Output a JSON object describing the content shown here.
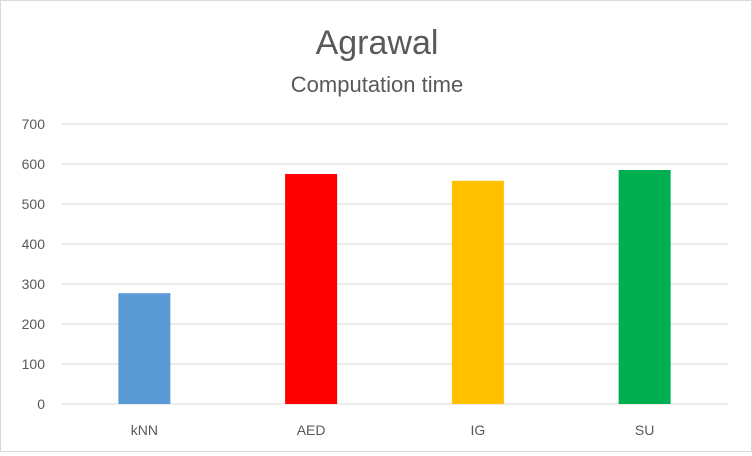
{
  "chart_data": {
    "type": "bar",
    "title": "Agrawal",
    "subtitle": "Computation time",
    "categories": [
      "kNN",
      "AED",
      "IG",
      "SU"
    ],
    "values": [
      277,
      575,
      558,
      585
    ],
    "colors": [
      "#5b9bd5",
      "#ff0000",
      "#ffc000",
      "#00b050"
    ],
    "ylim": [
      0,
      700
    ],
    "yticks": [
      0,
      100,
      200,
      300,
      400,
      500,
      600,
      700
    ],
    "grid": true,
    "legend": "none",
    "xlabel": "",
    "ylabel": ""
  }
}
